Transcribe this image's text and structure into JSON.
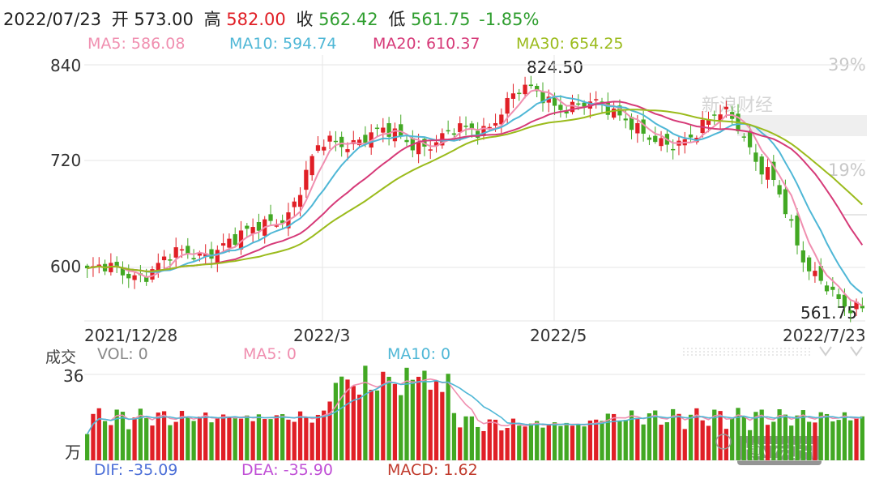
{
  "header": {
    "date": "2022/07/23",
    "open_label": "开",
    "open": "573.00",
    "high_label": "高",
    "high": "582.00",
    "close_label": "收",
    "close": "562.42",
    "low_label": "低",
    "low": "561.75",
    "change": "-1.85%"
  },
  "ma_legend": [
    {
      "label": "MA5: 586.08",
      "color": "#f08fb0"
    },
    {
      "label": "MA10: 594.74",
      "color": "#4fb7d6"
    },
    {
      "label": "MA20: 610.37",
      "color": "#d63a78"
    },
    {
      "label": "MA30: 654.25",
      "color": "#9bbb1c"
    }
  ],
  "colors": {
    "up": "#e01f26",
    "down": "#42a823",
    "grid": "#e6e6e6",
    "header_red": "#e01f26",
    "header_green": "#2f9e2f"
  },
  "price_axis": {
    "labels": [
      "840",
      "720",
      "600"
    ],
    "pct_labels": [
      "39%",
      "19%"
    ]
  },
  "date_axis": {
    "labels": [
      "2021/12/28",
      "2022/3",
      "2022/5",
      "2022/7/23"
    ]
  },
  "annotations": {
    "high_label": "824.50",
    "low_label": "561.75"
  },
  "volume": {
    "title": "成交",
    "vol_label": "VOL: 0",
    "ma5_label": "MA5: 0",
    "ma10_label": "MA10: 0",
    "axis_top": "36",
    "axis_unit": "万"
  },
  "macd": {
    "dif": "DIF: -35.09",
    "dea": "DEA: -35.90",
    "macd": "MACD: 1.62"
  },
  "watermarks": {
    "source": "新浪财经",
    "wechat": "博亚和讯"
  },
  "chart_data": {
    "type": "candlestick",
    "ylim": [
      548,
      840
    ],
    "y_ticks": [
      840,
      720,
      600
    ],
    "x_tick_labels": [
      "2021/12/28",
      "2022/3",
      "2022/5",
      "2022/7/23"
    ],
    "price_points": {
      "dates": [
        "2021/12/28",
        "2022/1/15",
        "2022/2/1",
        "2022/2/20",
        "2022/3/1",
        "2022/3/10",
        "2022/3/20",
        "2022/4/1",
        "2022/4/15",
        "2022/5/1",
        "2022/5/15",
        "2022/6/1",
        "2022/6/10",
        "2022/6/20",
        "2022/7/1",
        "2022/7/10",
        "2022/7/23"
      ],
      "close": [
        605,
        603,
        622,
        638,
        668,
        752,
        760,
        752,
        766,
        808,
        795,
        785,
        742,
        787,
        725,
        595,
        562.42
      ]
    },
    "series": [
      {
        "name": "MA5",
        "latest": 586.08
      },
      {
        "name": "MA10",
        "latest": 594.74
      },
      {
        "name": "MA20",
        "latest": 610.37
      },
      {
        "name": "MA30",
        "latest": 654.25
      }
    ],
    "period_high": 824.5,
    "period_low": 561.75,
    "volume_ylim": [
      0,
      36
    ],
    "volume_unit": "万"
  }
}
